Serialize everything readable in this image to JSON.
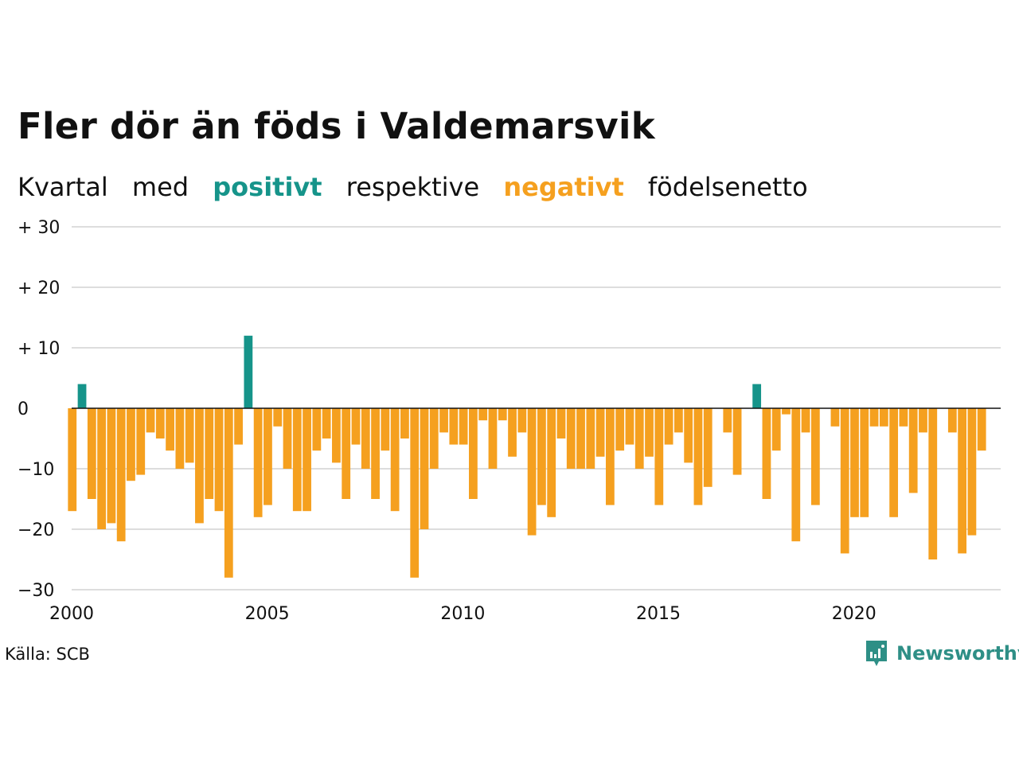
{
  "title": "Fler dör än föds i Valdemarsvik",
  "subtitle": {
    "part1": "Kvartal",
    "part2": "med",
    "positive": "positivt",
    "part3": "respektive",
    "negative": "negativt",
    "part4": "födelsenetto"
  },
  "source": "Källa: SCB",
  "brand": {
    "name": "Newsworthy",
    "icon": "newsworthy-logo-icon"
  },
  "colors": {
    "positive": "#16948a",
    "negative": "#f5a01f",
    "brand": "#2e8f86",
    "grid": "#dddddd",
    "zero_line": "#111111"
  },
  "chart_data": {
    "type": "bar",
    "title": "Fler dör än föds i Valdemarsvik",
    "xlabel": "",
    "ylabel": "",
    "x_start": 2000,
    "x_step": 0.25,
    "xticks": [
      2000,
      2005,
      2010,
      2015,
      2020
    ],
    "xtick_labels": [
      "2000",
      "2005",
      "2010",
      "2015",
      "2020"
    ],
    "xlim": [
      2000,
      2023.75
    ],
    "ylim": [
      -30,
      30
    ],
    "yticks": [
      30,
      20,
      10,
      0,
      -10,
      -20,
      -30
    ],
    "ytick_labels": [
      "+ 30",
      "+ 20",
      "+ 10",
      "0",
      "−10",
      "−20",
      "−30"
    ],
    "grid": true,
    "series": [
      {
        "values": [
          -17,
          4,
          -15,
          -20,
          -19,
          -22,
          -12,
          -11,
          -4,
          -5,
          -7,
          -10,
          -9,
          -19,
          -15,
          -17,
          -28,
          -6,
          12,
          -18,
          -16,
          -3,
          -10,
          -17,
          -17,
          -7,
          -5,
          -9,
          -15,
          -6,
          -10,
          -15,
          -7,
          -17,
          -5,
          -28,
          -20,
          -10,
          -4,
          -6,
          -6,
          -15,
          -2,
          -10,
          -2,
          -8,
          -4,
          -21,
          -16,
          -18,
          -5,
          -10,
          -10,
          -10,
          -8,
          -16,
          -7,
          -6,
          -10,
          -8,
          -16,
          -6,
          -4,
          -9,
          -16,
          -13,
          0,
          -4,
          -11,
          0,
          4,
          -15,
          -7,
          -1,
          -22,
          -4,
          -16,
          0,
          -3,
          -24,
          -18,
          -18,
          -3,
          -3,
          -18,
          -3,
          -14,
          -4,
          -25,
          0,
          -4,
          -24,
          -21,
          -7
        ]
      }
    ]
  }
}
